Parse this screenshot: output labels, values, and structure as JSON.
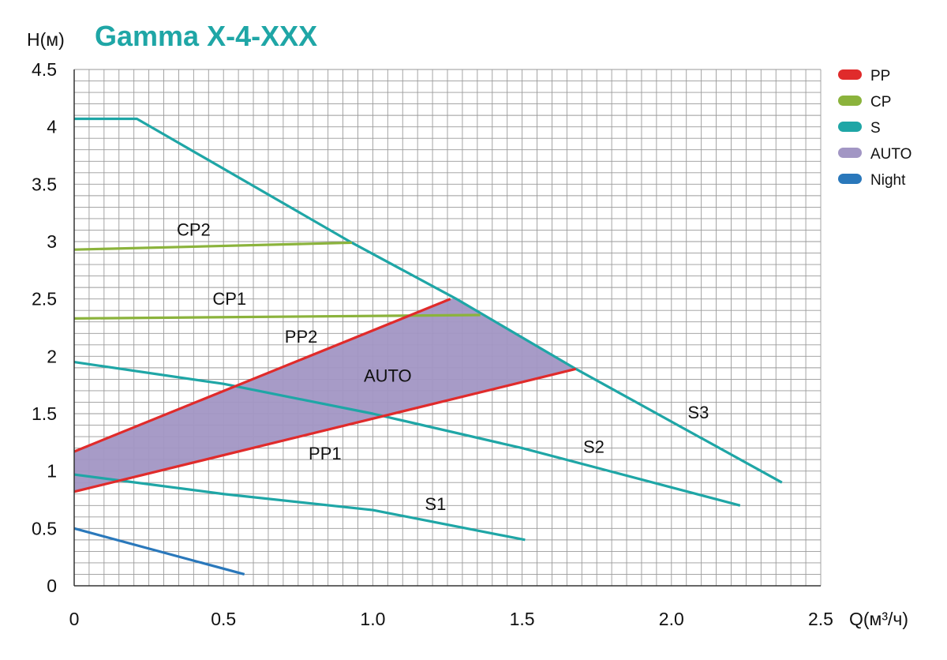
{
  "chart_data": {
    "type": "line",
    "title": "Gamma X-4-XXX",
    "ylabel": "H(м)",
    "xlabel": "Q(м³/ч)",
    "xlim": [
      0,
      2.5
    ],
    "ylim": [
      0,
      4.5
    ],
    "x_ticks": [
      "0",
      "0.5",
      "1.0",
      "1.5",
      "2.0",
      "2.5"
    ],
    "y_ticks": [
      "0",
      "0.5",
      "1",
      "1.5",
      "2",
      "2.5",
      "3",
      "3.5",
      "4",
      "4.5"
    ],
    "grid": true,
    "legend_position": "top-right",
    "legend": [
      {
        "label": "PP",
        "color": "#e02b2b"
      },
      {
        "label": "CP",
        "color": "#8bb33c"
      },
      {
        "label": "S",
        "color": "#1fa6a6"
      },
      {
        "label": "AUTO",
        "color": "#a296c4"
      },
      {
        "label": "Night",
        "color": "#2a78bb"
      }
    ],
    "series": [
      {
        "name": "S3",
        "group": "S",
        "points": [
          [
            0,
            4.07
          ],
          [
            0.21,
            4.07
          ],
          [
            0.93,
            2.99
          ],
          [
            1.28,
            2.5
          ],
          [
            1.68,
            1.89
          ],
          [
            2.37,
            0.9
          ]
        ]
      },
      {
        "name": "S2",
        "group": "S",
        "points": [
          [
            0,
            1.95
          ],
          [
            0.5,
            1.76
          ],
          [
            1.0,
            1.5
          ],
          [
            1.5,
            1.2
          ],
          [
            2.23,
            0.7
          ]
        ]
      },
      {
        "name": "S1",
        "group": "S",
        "points": [
          [
            0,
            0.97
          ],
          [
            0.5,
            0.8
          ],
          [
            1.0,
            0.66
          ],
          [
            1.51,
            0.4
          ]
        ]
      },
      {
        "name": "CP2",
        "group": "CP",
        "points": [
          [
            0,
            2.93
          ],
          [
            0.93,
            2.99
          ]
        ]
      },
      {
        "name": "CP1",
        "group": "CP",
        "points": [
          [
            0,
            2.33
          ],
          [
            1.36,
            2.36
          ]
        ]
      },
      {
        "name": "PP2",
        "group": "PP",
        "points": [
          [
            0,
            1.17
          ],
          [
            1.26,
            2.5
          ]
        ]
      },
      {
        "name": "PP1",
        "group": "PP",
        "points": [
          [
            0,
            0.82
          ],
          [
            1.68,
            1.89
          ]
        ]
      },
      {
        "name": "Night",
        "group": "Night",
        "points": [
          [
            0,
            0.5
          ],
          [
            0.57,
            0.1
          ]
        ]
      }
    ],
    "areas": [
      {
        "name": "AUTO",
        "points": [
          [
            0,
            1.17
          ],
          [
            1.26,
            2.5
          ],
          [
            1.28,
            2.5
          ],
          [
            1.68,
            1.89
          ],
          [
            0,
            0.82
          ]
        ]
      }
    ],
    "labels": [
      {
        "text": "CP2",
        "x": 0.4,
        "y": 3.05
      },
      {
        "text": "CP1",
        "x": 0.52,
        "y": 2.45
      },
      {
        "text": "PP2",
        "x": 0.76,
        "y": 2.12
      },
      {
        "text": "AUTO",
        "x": 1.05,
        "y": 1.78
      },
      {
        "text": "PP1",
        "x": 0.84,
        "y": 1.1
      },
      {
        "text": "S3",
        "x": 2.09,
        "y": 1.46
      },
      {
        "text": "S2",
        "x": 1.74,
        "y": 1.16
      },
      {
        "text": "S1",
        "x": 1.21,
        "y": 0.66
      }
    ]
  }
}
